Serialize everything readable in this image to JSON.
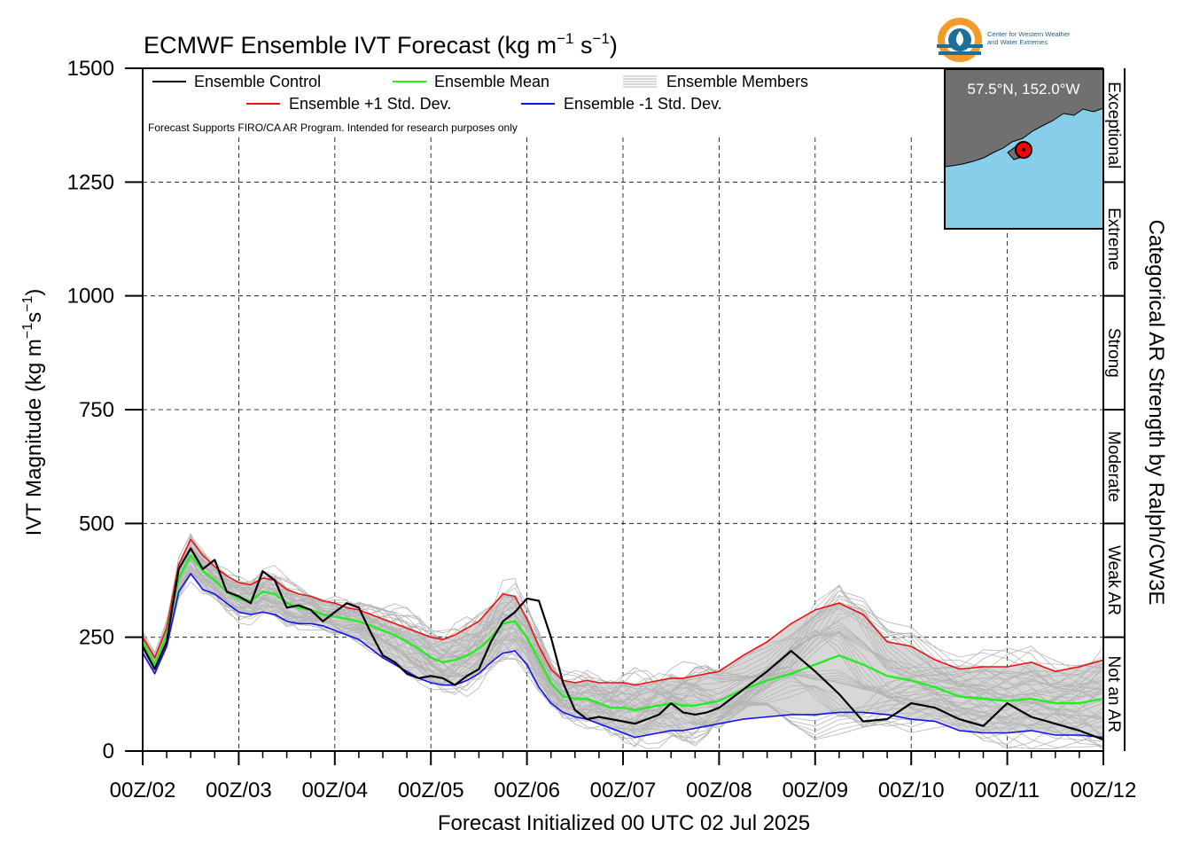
{
  "title_main": "ECMWF Ensemble IVT Forecast (kg m",
  "title_exp1": "−1",
  "title_mid": " s",
  "title_exp2": "−1",
  "title_end": ")",
  "ylabel_main": "IVT Magnitude (kg m",
  "ylabel_exp1": "−1",
  "ylabel_mid": "s",
  "ylabel_exp2": "−1",
  "ylabel_end": ")",
  "xlabel": "Forecast Initialized 00 UTC 02 Jul 2025",
  "right_axis_label": "Categorical AR Strength by Ralph/CW3E",
  "note": "Forecast Supports FIRO/CA AR Program. Intended for research purposes only",
  "logo_text_line1": "Center for Western Weather",
  "logo_text_line2": "and Water Extremes",
  "inset_label": "57.5°N, 152.0°W",
  "legend": {
    "control": "Ensemble Control",
    "mean": "Ensemble Mean",
    "members": "Ensemble Members",
    "plus_std": "Ensemble +1 Std. Dev.",
    "minus_std": "Ensemble -1 Std. Dev."
  },
  "colors": {
    "control": "#000000",
    "mean": "#22ee22",
    "plus_std": "#ee1111",
    "minus_std": "#1111ee",
    "members": "#b5b5b5",
    "shading": "#d7d7d7",
    "land": "#707070",
    "water": "#87ceeb",
    "marker": "#ff0000",
    "logo_orange": "#f39a2a",
    "logo_blue": "#1d6f99"
  },
  "chart_data": {
    "type": "line",
    "title": "ECMWF Ensemble IVT Forecast (kg m−1 s−1)",
    "xlabel": "Forecast Initialized 00 UTC 02 Jul 2025",
    "ylabel": "IVT Magnitude (kg m−1s−1)",
    "x_units": "forecast hour",
    "xlim": [
      0,
      240
    ],
    "ylim": [
      0,
      1500
    ],
    "grid": true,
    "legend_position": "top-left",
    "xticks": [
      {
        "x": 0,
        "label": "00Z/02"
      },
      {
        "x": 24,
        "label": "00Z/03"
      },
      {
        "x": 48,
        "label": "00Z/04"
      },
      {
        "x": 72,
        "label": "00Z/05"
      },
      {
        "x": 96,
        "label": "00Z/06"
      },
      {
        "x": 120,
        "label": "00Z/07"
      },
      {
        "x": 144,
        "label": "00Z/08"
      },
      {
        "x": 168,
        "label": "00Z/09"
      },
      {
        "x": 192,
        "label": "00Z/10"
      },
      {
        "x": 216,
        "label": "00Z/11"
      },
      {
        "x": 240,
        "label": "00Z/12"
      }
    ],
    "yticks": [
      0,
      250,
      500,
      750,
      1000,
      1250,
      1500
    ],
    "categories": [
      {
        "label": "Not an AR",
        "from": 0,
        "to": 250
      },
      {
        "label": "Weak AR",
        "from": 250,
        "to": 500
      },
      {
        "label": "Moderate",
        "from": 500,
        "to": 750
      },
      {
        "label": "Strong",
        "from": 750,
        "to": 1000
      },
      {
        "label": "Extreme",
        "from": 1000,
        "to": 1250
      },
      {
        "label": "Exceptional",
        "from": 1250,
        "to": 1500
      }
    ],
    "series": [
      {
        "name": "Ensemble Control",
        "key": "control",
        "x": [
          0,
          3,
          6,
          9,
          12,
          15,
          18,
          21,
          24,
          27,
          30,
          33,
          36,
          39,
          42,
          45,
          48,
          51,
          54,
          57,
          60,
          63,
          66,
          69,
          72,
          75,
          78,
          81,
          84,
          87,
          90,
          93,
          96,
          99,
          102,
          105,
          108,
          111,
          114,
          117,
          120,
          123,
          126,
          129,
          132,
          135,
          138,
          141,
          144,
          150,
          156,
          162,
          168,
          174,
          180,
          186,
          192,
          198,
          204,
          210,
          216,
          222,
          228,
          234,
          240
        ],
        "y": [
          230,
          180,
          240,
          400,
          445,
          400,
          420,
          350,
          340,
          325,
          395,
          375,
          315,
          320,
          310,
          285,
          305,
          325,
          315,
          260,
          210,
          195,
          170,
          160,
          165,
          160,
          145,
          165,
          180,
          240,
          285,
          305,
          335,
          330,
          250,
          150,
          90,
          70,
          75,
          70,
          65,
          60,
          70,
          80,
          105,
          85,
          80,
          85,
          95,
          135,
          175,
          220,
          175,
          125,
          65,
          70,
          105,
          95,
          70,
          55,
          105,
          75,
          60,
          45,
          25
        ]
      },
      {
        "name": "Ensemble Mean",
        "key": "mean",
        "x": [
          0,
          3,
          6,
          9,
          12,
          15,
          18,
          21,
          24,
          27,
          30,
          33,
          36,
          39,
          42,
          45,
          48,
          51,
          54,
          57,
          60,
          63,
          66,
          69,
          72,
          75,
          78,
          81,
          84,
          87,
          90,
          93,
          96,
          99,
          102,
          105,
          108,
          111,
          114,
          117,
          120,
          123,
          126,
          129,
          132,
          135,
          138,
          141,
          144,
          150,
          156,
          162,
          168,
          174,
          180,
          186,
          192,
          198,
          204,
          210,
          216,
          222,
          228,
          234,
          240
        ],
        "y": [
          240,
          190,
          255,
          380,
          430,
          395,
          375,
          350,
          335,
          330,
          350,
          345,
          325,
          315,
          310,
          300,
          295,
          290,
          285,
          275,
          265,
          255,
          240,
          225,
          205,
          195,
          200,
          210,
          225,
          250,
          280,
          285,
          250,
          200,
          150,
          120,
          115,
          115,
          105,
          95,
          95,
          90,
          95,
          100,
          105,
          100,
          100,
          105,
          110,
          135,
          155,
          170,
          190,
          210,
          190,
          165,
          155,
          140,
          120,
          115,
          110,
          115,
          105,
          105,
          115
        ]
      },
      {
        "name": "Ensemble +1 Std. Dev.",
        "key": "plus_std",
        "x": [
          0,
          3,
          6,
          9,
          12,
          15,
          18,
          21,
          24,
          27,
          30,
          33,
          36,
          39,
          42,
          45,
          48,
          51,
          54,
          57,
          60,
          63,
          66,
          69,
          72,
          75,
          78,
          81,
          84,
          87,
          90,
          93,
          96,
          99,
          102,
          105,
          108,
          111,
          114,
          117,
          120,
          123,
          126,
          129,
          132,
          135,
          138,
          141,
          144,
          150,
          156,
          162,
          168,
          174,
          180,
          186,
          192,
          198,
          204,
          210,
          216,
          222,
          228,
          234,
          240
        ],
        "y": [
          250,
          205,
          270,
          410,
          465,
          430,
          405,
          385,
          370,
          365,
          380,
          375,
          355,
          345,
          340,
          330,
          325,
          315,
          310,
          300,
          290,
          280,
          270,
          260,
          250,
          245,
          255,
          270,
          285,
          315,
          345,
          340,
          290,
          230,
          180,
          155,
          150,
          155,
          150,
          150,
          150,
          145,
          150,
          155,
          160,
          160,
          165,
          170,
          175,
          210,
          240,
          280,
          310,
          325,
          300,
          240,
          230,
          200,
          180,
          185,
          185,
          195,
          175,
          185,
          200
        ]
      },
      {
        "name": "Ensemble -1 Std. Dev.",
        "key": "minus_std",
        "x": [
          0,
          3,
          6,
          9,
          12,
          15,
          18,
          21,
          24,
          27,
          30,
          33,
          36,
          39,
          42,
          45,
          48,
          51,
          54,
          57,
          60,
          63,
          66,
          69,
          72,
          75,
          78,
          81,
          84,
          87,
          90,
          93,
          96,
          99,
          102,
          105,
          108,
          111,
          114,
          117,
          120,
          123,
          126,
          129,
          132,
          135,
          138,
          141,
          144,
          150,
          156,
          162,
          168,
          174,
          180,
          186,
          192,
          198,
          204,
          210,
          216,
          222,
          228,
          234,
          240
        ],
        "y": [
          215,
          170,
          230,
          350,
          390,
          355,
          345,
          325,
          305,
          300,
          305,
          300,
          285,
          280,
          280,
          275,
          265,
          255,
          245,
          225,
          205,
          190,
          175,
          160,
          150,
          145,
          145,
          155,
          170,
          195,
          215,
          220,
          190,
          140,
          105,
          85,
          75,
          70,
          60,
          50,
          40,
          30,
          35,
          40,
          45,
          45,
          50,
          55,
          60,
          70,
          75,
          80,
          80,
          85,
          85,
          80,
          70,
          65,
          45,
          40,
          40,
          45,
          35,
          35,
          30
        ]
      }
    ]
  }
}
